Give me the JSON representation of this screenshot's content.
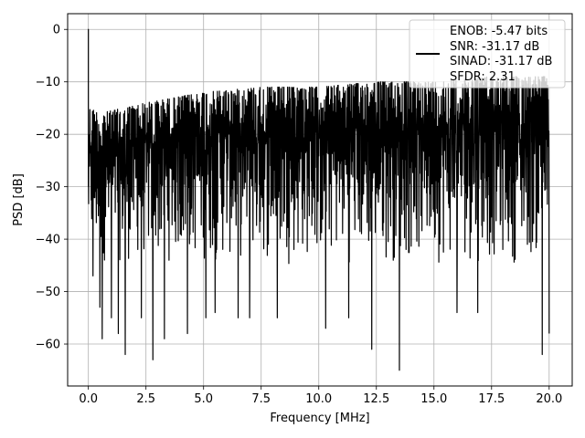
{
  "chart_data": {
    "type": "line",
    "title": "",
    "xlabel": "Frequency [MHz]",
    "ylabel": "PSD [dB]",
    "xlim": [
      -0.9,
      21.0
    ],
    "ylim": [
      -68,
      3
    ],
    "x_ticks": [
      0.0,
      2.5,
      5.0,
      7.5,
      10.0,
      12.5,
      15.0,
      17.5,
      20.0
    ],
    "x_tick_labels": [
      "0.0",
      "2.5",
      "5.0",
      "7.5",
      "10.0",
      "12.5",
      "15.0",
      "17.5",
      "20.0"
    ],
    "y_ticks": [
      0,
      -10,
      -20,
      -30,
      -40,
      -50,
      -60
    ],
    "y_tick_labels": [
      "0",
      "−10",
      "−20",
      "−30",
      "−40",
      "−50",
      "−60"
    ],
    "grid": true,
    "legend_position": "top-right",
    "legend_entries": [
      "ENOB: -5.47 bits",
      "SNR: -31.17 dB",
      "SINAD: -31.17 dB",
      "SFDR: 2.31"
    ],
    "series": [
      {
        "color": "#000000",
        "description": "dense noise floor spectrum from 0 to 20 MHz with a peak near 0 dB at DC",
        "x_range": [
          0.0,
          20.0
        ],
        "peak": {
          "x": 0.0,
          "y": 0.0
        },
        "upper_envelope": [
          [
            0.1,
            -15
          ],
          [
            0.5,
            -16
          ],
          [
            2.5,
            -14
          ],
          [
            5.0,
            -12
          ],
          [
            7.5,
            -11
          ],
          [
            10.0,
            -11
          ],
          [
            12.5,
            -10
          ],
          [
            15.0,
            -10
          ],
          [
            17.5,
            -9
          ],
          [
            20.0,
            -9
          ]
        ],
        "typical_range": [
          -45,
          -12
        ],
        "deep_minima": [
          [
            0.2,
            -47
          ],
          [
            0.5,
            -53
          ],
          [
            0.6,
            -59
          ],
          [
            1.0,
            -55
          ],
          [
            1.3,
            -58
          ],
          [
            1.6,
            -62
          ],
          [
            2.3,
            -55
          ],
          [
            2.8,
            -63
          ],
          [
            3.3,
            -59
          ],
          [
            4.3,
            -58
          ],
          [
            5.1,
            -55
          ],
          [
            5.5,
            -54
          ],
          [
            6.5,
            -55
          ],
          [
            7.0,
            -55
          ],
          [
            8.2,
            -55
          ],
          [
            10.3,
            -57
          ],
          [
            11.3,
            -55
          ],
          [
            12.3,
            -61
          ],
          [
            13.5,
            -65
          ],
          [
            16.0,
            -54
          ],
          [
            16.9,
            -54
          ],
          [
            19.7,
            -62
          ],
          [
            20.0,
            -58
          ]
        ]
      }
    ]
  }
}
